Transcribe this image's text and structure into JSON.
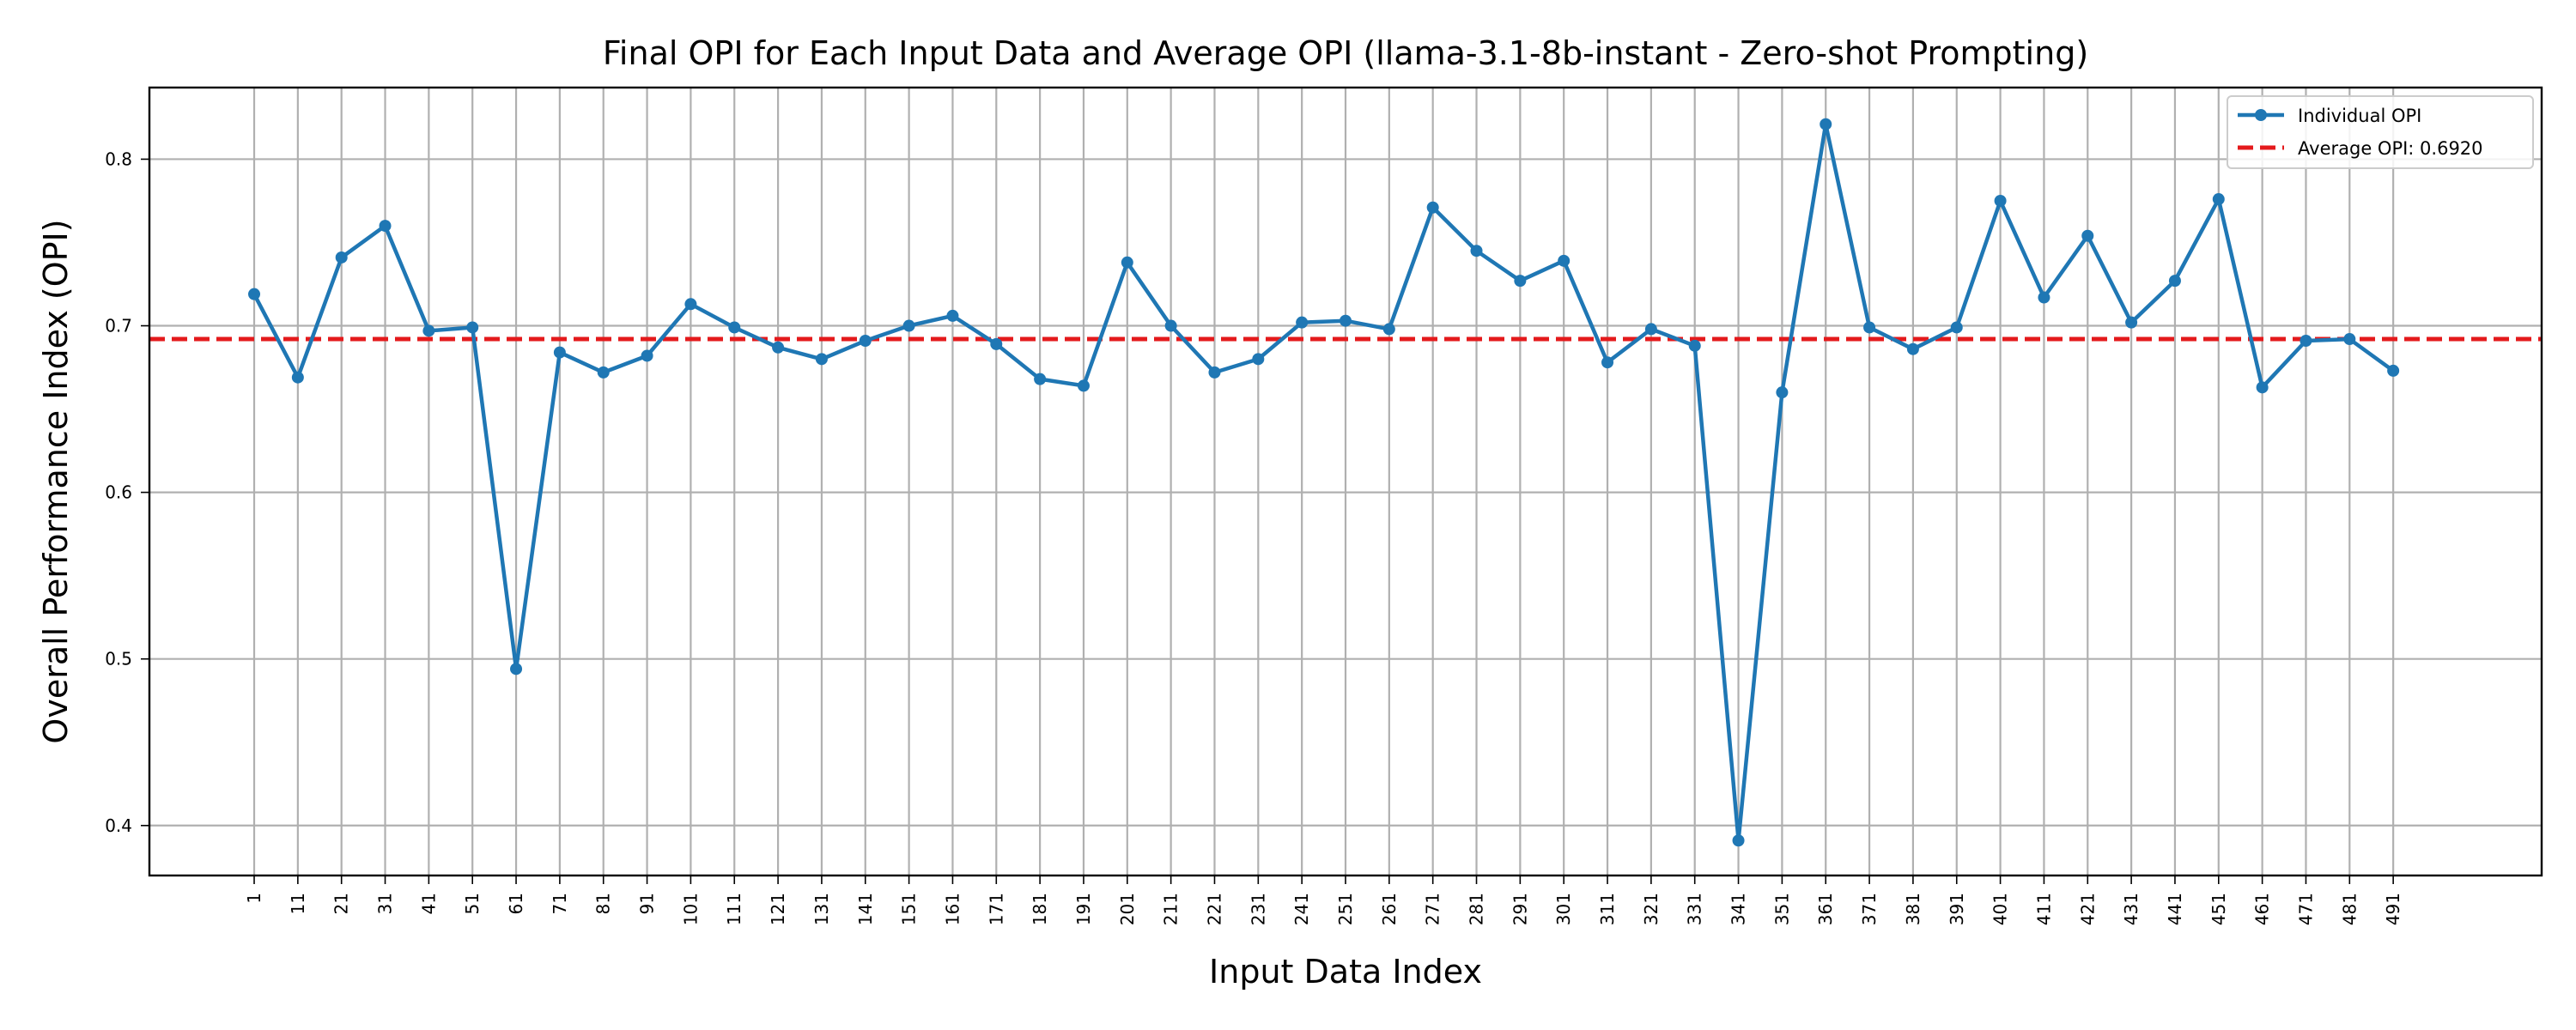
{
  "chart_data": {
    "type": "line",
    "title": "Final OPI for Each Input Data and Average OPI (llama-3.1-8b-instant - Zero-shot Prompting)",
    "xlabel": "Input Data Index",
    "ylabel": "Overall Performance Index (OPI)",
    "x": [
      1,
      11,
      21,
      31,
      41,
      51,
      61,
      71,
      81,
      91,
      101,
      111,
      121,
      131,
      141,
      151,
      161,
      171,
      181,
      191,
      201,
      211,
      221,
      231,
      241,
      251,
      261,
      271,
      281,
      291,
      301,
      311,
      321,
      331,
      341,
      351,
      361,
      371,
      381,
      391,
      401,
      411,
      421,
      431,
      441,
      451,
      461,
      471,
      481,
      491
    ],
    "xlim": [
      -23,
      525
    ],
    "ylim": [
      0.37,
      0.843
    ],
    "yticks": [
      0.4,
      0.5,
      0.6,
      0.7,
      0.8
    ],
    "ytick_labels": [
      "0.4",
      "0.5",
      "0.6",
      "0.7",
      "0.8"
    ],
    "grid": true,
    "legend_position": "top-right",
    "series": [
      {
        "name": "Individual OPI",
        "color": "#1f77b4",
        "style": "line-with-markers",
        "values": [
          0.719,
          0.669,
          0.741,
          0.76,
          0.697,
          0.699,
          0.494,
          0.684,
          0.672,
          0.682,
          0.713,
          0.699,
          0.687,
          0.68,
          0.691,
          0.7,
          0.706,
          0.689,
          0.668,
          0.664,
          0.738,
          0.7,
          0.672,
          0.68,
          0.702,
          0.703,
          0.698,
          0.771,
          0.745,
          0.727,
          0.739,
          0.678,
          0.698,
          0.688,
          0.391,
          0.66,
          0.821,
          0.699,
          0.686,
          0.699,
          0.775,
          0.717,
          0.754,
          0.702,
          0.727,
          0.776,
          0.663,
          0.691,
          0.692,
          0.673
        ]
      }
    ],
    "reference_line": {
      "name": "Average OPI: 0.6920",
      "value": 0.692,
      "color": "#e41a1c",
      "style": "dashed"
    }
  }
}
